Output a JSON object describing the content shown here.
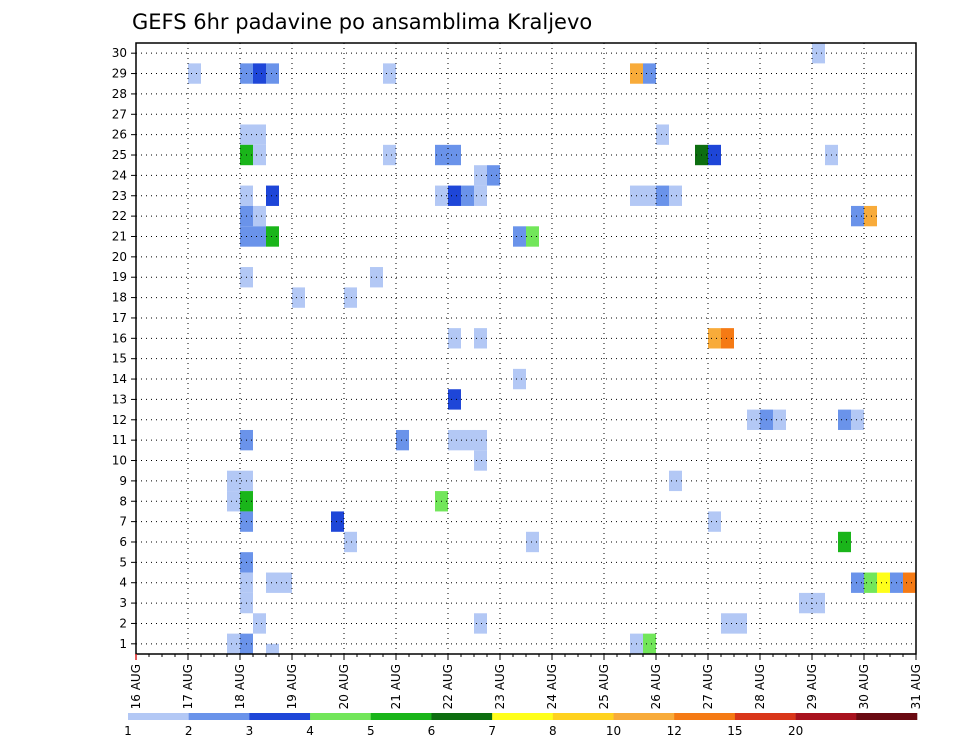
{
  "chart_data": {
    "type": "heatmap",
    "title": "GEFS 6hr padavine po ansamblima Kraljevo",
    "xlabel": "",
    "ylabel": "",
    "x_start_date": "2024-08-16",
    "x_ticks": [
      "16 AUG",
      "17 AUG",
      "18 AUG",
      "19 AUG",
      "20 AUG",
      "21 AUG",
      "22 AUG",
      "23 AUG",
      "24 AUG",
      "25 AUG",
      "26 AUG",
      "27 AUG",
      "28 AUG",
      "29 AUG",
      "30 AUG",
      "31 AUG"
    ],
    "y_ticks": [
      1,
      2,
      3,
      4,
      5,
      6,
      7,
      8,
      9,
      10,
      11,
      12,
      13,
      14,
      15,
      16,
      17,
      18,
      19,
      20,
      21,
      22,
      23,
      24,
      25,
      26,
      27,
      28,
      29,
      30
    ],
    "ylim": [
      0.5,
      30.5
    ],
    "grid": true,
    "colorbar": {
      "position": "bottom",
      "labels": [
        "1",
        "2",
        "3",
        "4",
        "5",
        "6",
        "7",
        "8",
        "10",
        "12",
        "15",
        "20"
      ],
      "colors": [
        "#b3c8f5",
        "#6a93ea",
        "#1e46d8",
        "#72e65a",
        "#1ab51a",
        "#0d6e10",
        "#ffff1a",
        "#ffd21e",
        "#f8ab3a",
        "#f57a14",
        "#d9361a",
        "#a8121e",
        "#6a0a12"
      ]
    },
    "cells_note": "Each cell: x = forecast time as a date (6-hourly step, 2024-08-16 00Z to 2024-08-31 00Z), y = ensemble member, v = 6-hr precipitation colour-class index (0=1-2,1=2-3,2=3-4,3=4-5,4=5-6,5=6-7,6=7-8,7=8-10,8=10-12,9=12-15,10=15-20,11=>20)",
    "cells": [
      {
        "x": "2024-08-17 00Z",
        "y": 29,
        "v": 0
      },
      {
        "x": "2024-08-18 00Z",
        "y": 29,
        "v": 1
      },
      {
        "x": "2024-08-18 06Z",
        "y": 29,
        "v": 2
      },
      {
        "x": "2024-08-18 12Z",
        "y": 29,
        "v": 1
      },
      {
        "x": "2024-08-20 18Z",
        "y": 29,
        "v": 0
      },
      {
        "x": "2024-08-25 12Z",
        "y": 29,
        "v": 8
      },
      {
        "x": "2024-08-25 18Z",
        "y": 29,
        "v": 1
      },
      {
        "x": "2024-08-29 00Z",
        "y": 30,
        "v": 0
      },
      {
        "x": "2024-08-18 00Z",
        "y": 26,
        "v": 0
      },
      {
        "x": "2024-08-18 06Z",
        "y": 26,
        "v": 0
      },
      {
        "x": "2024-08-26 00Z",
        "y": 26,
        "v": 0
      },
      {
        "x": "2024-08-18 00Z",
        "y": 25,
        "v": 4
      },
      {
        "x": "2024-08-18 06Z",
        "y": 25,
        "v": 0
      },
      {
        "x": "2024-08-20 18Z",
        "y": 25,
        "v": 0
      },
      {
        "x": "2024-08-21 18Z",
        "y": 25,
        "v": 1
      },
      {
        "x": "2024-08-22 00Z",
        "y": 25,
        "v": 1
      },
      {
        "x": "2024-08-26 18Z",
        "y": 25,
        "v": 5
      },
      {
        "x": "2024-08-27 00Z",
        "y": 25,
        "v": 2
      },
      {
        "x": "2024-08-29 06Z",
        "y": 25,
        "v": 0
      },
      {
        "x": "2024-08-22 12Z",
        "y": 24,
        "v": 0
      },
      {
        "x": "2024-08-22 18Z",
        "y": 24,
        "v": 1
      },
      {
        "x": "2024-08-18 00Z",
        "y": 23,
        "v": 0
      },
      {
        "x": "2024-08-18 12Z",
        "y": 23,
        "v": 2
      },
      {
        "x": "2024-08-21 18Z",
        "y": 23,
        "v": 0
      },
      {
        "x": "2024-08-22 00Z",
        "y": 23,
        "v": 2
      },
      {
        "x": "2024-08-22 06Z",
        "y": 23,
        "v": 1
      },
      {
        "x": "2024-08-22 12Z",
        "y": 23,
        "v": 0
      },
      {
        "x": "2024-08-25 12Z",
        "y": 23,
        "v": 0
      },
      {
        "x": "2024-08-25 18Z",
        "y": 23,
        "v": 0
      },
      {
        "x": "2024-08-26 00Z",
        "y": 23,
        "v": 1
      },
      {
        "x": "2024-08-26 06Z",
        "y": 23,
        "v": 0
      },
      {
        "x": "2024-08-18 00Z",
        "y": 22,
        "v": 1
      },
      {
        "x": "2024-08-18 06Z",
        "y": 22,
        "v": 0
      },
      {
        "x": "2024-08-29 18Z",
        "y": 22,
        "v": 1
      },
      {
        "x": "2024-08-30 00Z",
        "y": 22,
        "v": 8
      },
      {
        "x": "2024-08-18 00Z",
        "y": 21,
        "v": 1
      },
      {
        "x": "2024-08-18 06Z",
        "y": 21,
        "v": 1
      },
      {
        "x": "2024-08-18 12Z",
        "y": 21,
        "v": 4
      },
      {
        "x": "2024-08-23 06Z",
        "y": 21,
        "v": 1
      },
      {
        "x": "2024-08-23 12Z",
        "y": 21,
        "v": 3
      },
      {
        "x": "2024-08-18 00Z",
        "y": 19,
        "v": 0
      },
      {
        "x": "2024-08-20 12Z",
        "y": 19,
        "v": 0
      },
      {
        "x": "2024-08-19 00Z",
        "y": 18,
        "v": 0
      },
      {
        "x": "2024-08-20 00Z",
        "y": 18,
        "v": 0
      },
      {
        "x": "2024-08-22 00Z",
        "y": 16,
        "v": 0
      },
      {
        "x": "2024-08-22 12Z",
        "y": 16,
        "v": 0
      },
      {
        "x": "2024-08-27 00Z",
        "y": 16,
        "v": 8
      },
      {
        "x": "2024-08-27 06Z",
        "y": 16,
        "v": 9
      },
      {
        "x": "2024-08-23 06Z",
        "y": 14,
        "v": 0
      },
      {
        "x": "2024-08-22 00Z",
        "y": 13,
        "v": 2
      },
      {
        "x": "2024-08-27 18Z",
        "y": 12,
        "v": 0
      },
      {
        "x": "2024-08-28 00Z",
        "y": 12,
        "v": 1
      },
      {
        "x": "2024-08-28 06Z",
        "y": 12,
        "v": 0
      },
      {
        "x": "2024-08-29 12Z",
        "y": 12,
        "v": 1
      },
      {
        "x": "2024-08-29 18Z",
        "y": 12,
        "v": 0
      },
      {
        "x": "2024-08-18 00Z",
        "y": 11,
        "v": 1
      },
      {
        "x": "2024-08-21 00Z",
        "y": 11,
        "v": 1
      },
      {
        "x": "2024-08-22 00Z",
        "y": 11,
        "v": 0
      },
      {
        "x": "2024-08-22 06Z",
        "y": 11,
        "v": 0
      },
      {
        "x": "2024-08-22 12Z",
        "y": 11,
        "v": 0
      },
      {
        "x": "2024-08-22 12Z",
        "y": 10,
        "v": 0
      },
      {
        "x": "2024-08-17 18Z",
        "y": 9,
        "v": 0
      },
      {
        "x": "2024-08-18 00Z",
        "y": 9,
        "v": 0
      },
      {
        "x": "2024-08-26 06Z",
        "y": 9,
        "v": 0
      },
      {
        "x": "2024-08-17 18Z",
        "y": 8,
        "v": 0
      },
      {
        "x": "2024-08-18 00Z",
        "y": 8,
        "v": 4
      },
      {
        "x": "2024-08-21 18Z",
        "y": 8,
        "v": 3
      },
      {
        "x": "2024-08-18 00Z",
        "y": 7,
        "v": 1
      },
      {
        "x": "2024-08-19 18Z",
        "y": 7,
        "v": 2
      },
      {
        "x": "2024-08-27 00Z",
        "y": 7,
        "v": 0
      },
      {
        "x": "2024-08-20 00Z",
        "y": 6,
        "v": 0
      },
      {
        "x": "2024-08-23 12Z",
        "y": 6,
        "v": 0
      },
      {
        "x": "2024-08-29 12Z",
        "y": 6,
        "v": 4
      },
      {
        "x": "2024-08-18 00Z",
        "y": 5,
        "v": 1
      },
      {
        "x": "2024-08-18 00Z",
        "y": 4,
        "v": 0
      },
      {
        "x": "2024-08-18 12Z",
        "y": 4,
        "v": 0
      },
      {
        "x": "2024-08-18 18Z",
        "y": 4,
        "v": 0
      },
      {
        "x": "2024-08-29 18Z",
        "y": 4,
        "v": 1
      },
      {
        "x": "2024-08-30 00Z",
        "y": 4,
        "v": 3
      },
      {
        "x": "2024-08-30 06Z",
        "y": 4,
        "v": 6
      },
      {
        "x": "2024-08-30 12Z",
        "y": 4,
        "v": 1
      },
      {
        "x": "2024-08-30 18Z",
        "y": 4,
        "v": 9
      },
      {
        "x": "2024-08-18 00Z",
        "y": 3,
        "v": 0
      },
      {
        "x": "2024-08-28 18Z",
        "y": 3,
        "v": 0
      },
      {
        "x": "2024-08-29 00Z",
        "y": 3,
        "v": 0
      },
      {
        "x": "2024-08-18 06Z",
        "y": 2,
        "v": 0
      },
      {
        "x": "2024-08-22 12Z",
        "y": 2,
        "v": 0
      },
      {
        "x": "2024-08-27 06Z",
        "y": 2,
        "v": 0
      },
      {
        "x": "2024-08-27 12Z",
        "y": 2,
        "v": 0
      },
      {
        "x": "2024-08-17 18Z",
        "y": 1,
        "v": 0
      },
      {
        "x": "2024-08-18 00Z",
        "y": 1,
        "v": 1
      },
      {
        "x": "2024-08-25 12Z",
        "y": 1,
        "v": 0
      },
      {
        "x": "2024-08-25 18Z",
        "y": 1,
        "v": 3
      },
      {
        "x": "2024-08-17 18Z",
        "y": 0.5,
        "v": 0
      },
      {
        "x": "2024-08-18 12Z",
        "y": 0.5,
        "v": 0
      }
    ]
  }
}
